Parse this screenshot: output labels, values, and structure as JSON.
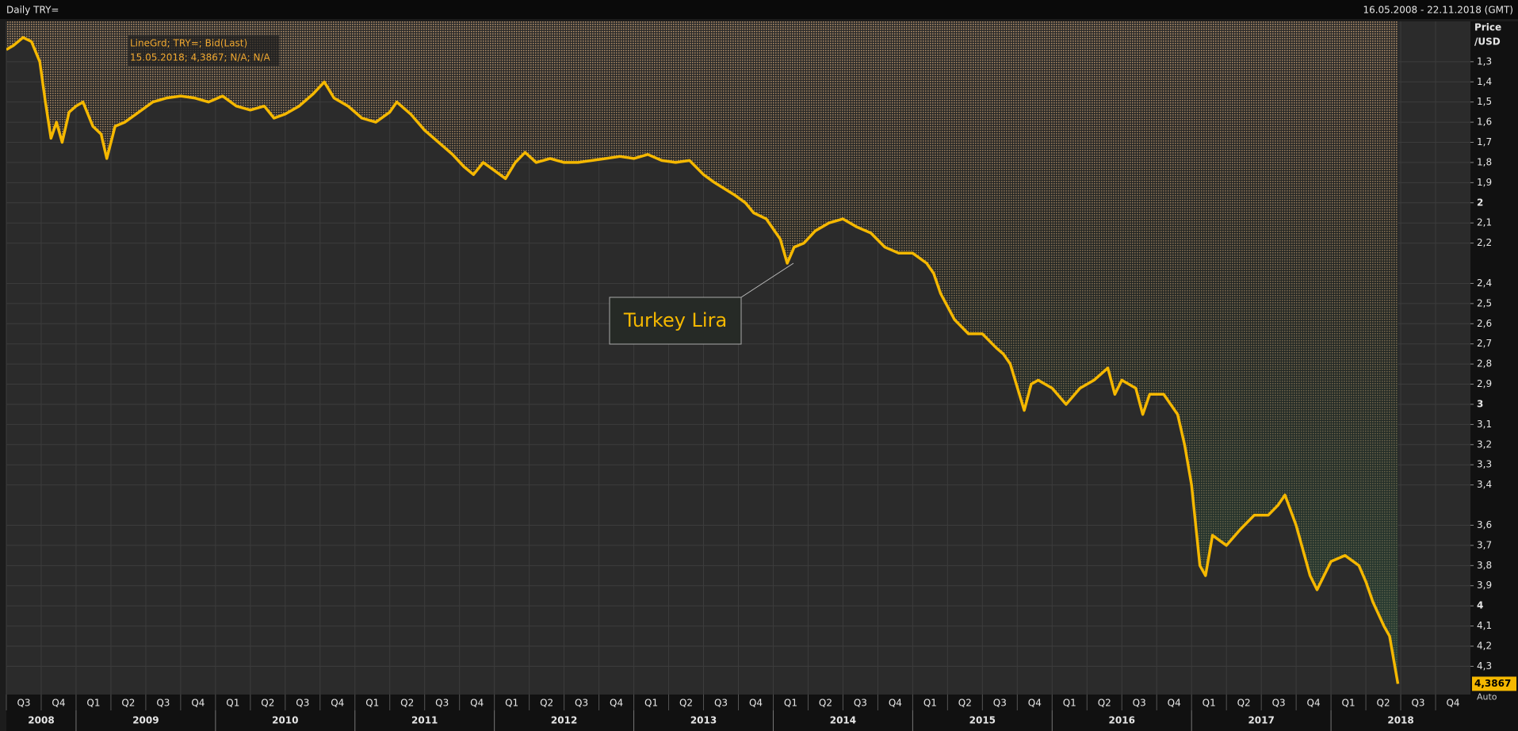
{
  "chart_data": {
    "type": "line",
    "header_title": "Daily TRY=",
    "date_range": "16.05.2008 - 22.11.2018 (GMT)",
    "legend_lines": [
      "LineGrd; TRY=; Bid(Last)",
      "15.05.2018; 4,3867; N/A; N/A"
    ],
    "ylabel": [
      "Price",
      "/USD"
    ],
    "scale_mode": "Auto",
    "annotation": "Turkey Lira",
    "inverted": true,
    "grid": true,
    "ylim": [
      1.1,
      4.44
    ],
    "yticks": [
      {
        "value": 1.3,
        "label": "1,3"
      },
      {
        "value": 1.4,
        "label": "1,4"
      },
      {
        "value": 1.5,
        "label": "1,5"
      },
      {
        "value": 1.6,
        "label": "1,6"
      },
      {
        "value": 1.7,
        "label": "1,7"
      },
      {
        "value": 1.8,
        "label": "1,8"
      },
      {
        "value": 1.9,
        "label": "1,9"
      },
      2,
      {
        "value": 2.1,
        "label": "2,1"
      },
      {
        "value": 2.2,
        "label": "2,2"
      },
      {
        "value": 2.4,
        "label": "2,4"
      },
      {
        "value": 2.5,
        "label": "2,5"
      },
      {
        "value": 2.6,
        "label": "2,6"
      },
      {
        "value": 2.7,
        "label": "2,7"
      },
      {
        "value": 2.8,
        "label": "2,8"
      },
      {
        "value": 2.9,
        "label": "2,9"
      },
      3,
      {
        "value": 3.1,
        "label": "3,1"
      },
      {
        "value": 3.2,
        "label": "3,2"
      },
      {
        "value": 3.3,
        "label": "3,3"
      },
      {
        "value": 3.4,
        "label": "3,4"
      },
      {
        "value": 3.6,
        "label": "3,6"
      },
      {
        "value": 3.7,
        "label": "3,7"
      },
      {
        "value": 3.8,
        "label": "3,8"
      },
      {
        "value": 3.9,
        "label": "3,9"
      },
      4,
      {
        "value": 4.1,
        "label": "4,1"
      },
      {
        "value": 4.2,
        "label": "4,2"
      },
      {
        "value": 4.3,
        "label": "4,3"
      }
    ],
    "xlim": [
      2008.5,
      2019.0
    ],
    "xticks": [
      {
        "value": 2008.5,
        "label": "Q3"
      },
      {
        "value": 2008.75,
        "label": "Q4"
      },
      {
        "value": 2009,
        "label": "Q1"
      },
      {
        "value": 2009.25,
        "label": "Q2"
      },
      {
        "value": 2009.5,
        "label": "Q3"
      },
      {
        "value": 2009.75,
        "label": "Q4"
      },
      {
        "value": 2010,
        "label": "Q1"
      },
      {
        "value": 2010.25,
        "label": "Q2"
      },
      {
        "value": 2010.5,
        "label": "Q3"
      },
      {
        "value": 2010.75,
        "label": "Q4"
      },
      {
        "value": 2011,
        "label": "Q1"
      },
      {
        "value": 2011.25,
        "label": "Q2"
      },
      {
        "value": 2011.5,
        "label": "Q3"
      },
      {
        "value": 2011.75,
        "label": "Q4"
      },
      {
        "value": 2012,
        "label": "Q1"
      },
      {
        "value": 2012.25,
        "label": "Q2"
      },
      {
        "value": 2012.5,
        "label": "Q3"
      },
      {
        "value": 2012.75,
        "label": "Q4"
      },
      {
        "value": 2013,
        "label": "Q1"
      },
      {
        "value": 2013.25,
        "label": "Q2"
      },
      {
        "value": 2013.5,
        "label": "Q3"
      },
      {
        "value": 2013.75,
        "label": "Q4"
      },
      {
        "value": 2014,
        "label": "Q1"
      },
      {
        "value": 2014.25,
        "label": "Q2"
      },
      {
        "value": 2014.5,
        "label": "Q3"
      },
      {
        "value": 2014.75,
        "label": "Q4"
      },
      {
        "value": 2015,
        "label": "Q1"
      },
      {
        "value": 2015.25,
        "label": "Q2"
      },
      {
        "value": 2015.5,
        "label": "Q3"
      },
      {
        "value": 2015.75,
        "label": "Q4"
      },
      {
        "value": 2016,
        "label": "Q1"
      },
      {
        "value": 2016.25,
        "label": "Q2"
      },
      {
        "value": 2016.5,
        "label": "Q3"
      },
      {
        "value": 2016.75,
        "label": "Q4"
      },
      {
        "value": 2017,
        "label": "Q1"
      },
      {
        "value": 2017.25,
        "label": "Q2"
      },
      {
        "value": 2017.5,
        "label": "Q3"
      },
      {
        "value": 2017.75,
        "label": "Q4"
      },
      {
        "value": 2018,
        "label": "Q1"
      },
      {
        "value": 2018.25,
        "label": "Q2"
      },
      {
        "value": 2018.5,
        "label": "Q3"
      },
      {
        "value": 2018.75,
        "label": "Q4"
      }
    ],
    "year_ticks": [
      {
        "value": 2008,
        "label": "2008"
      },
      {
        "value": 2009,
        "label": "2009"
      },
      {
        "value": 2010,
        "label": "2010"
      },
      {
        "value": 2011,
        "label": "2011"
      },
      {
        "value": 2012,
        "label": "2012"
      },
      {
        "value": 2013,
        "label": "2013"
      },
      {
        "value": 2014,
        "label": "2014"
      },
      {
        "value": 2015,
        "label": "2015"
      },
      {
        "value": 2016,
        "label": "2016"
      },
      {
        "value": 2017,
        "label": "2017"
      },
      {
        "value": 2018,
        "label": "2018"
      }
    ],
    "last_value_label": "4,3867",
    "series": [
      {
        "name": "TRY=",
        "color": "#f5b800",
        "x": [
          2008.5,
          2008.55,
          2008.62,
          2008.68,
          2008.74,
          2008.78,
          2008.82,
          2008.86,
          2008.9,
          2008.95,
          2009.0,
          2009.05,
          2009.12,
          2009.18,
          2009.22,
          2009.28,
          2009.35,
          2009.45,
          2009.55,
          2009.65,
          2009.75,
          2009.85,
          2009.95,
          2010.05,
          2010.15,
          2010.25,
          2010.35,
          2010.42,
          2010.5,
          2010.6,
          2010.7,
          2010.78,
          2010.85,
          2010.95,
          2011.05,
          2011.15,
          2011.25,
          2011.3,
          2011.4,
          2011.5,
          2011.6,
          2011.7,
          2011.78,
          2011.85,
          2011.92,
          2012.0,
          2012.08,
          2012.15,
          2012.22,
          2012.3,
          2012.4,
          2012.5,
          2012.6,
          2012.7,
          2012.8,
          2012.9,
          2013.0,
          2013.1,
          2013.2,
          2013.3,
          2013.4,
          2013.5,
          2013.58,
          2013.65,
          2013.72,
          2013.8,
          2013.86,
          2013.95,
          2014.05,
          2014.1,
          2014.15,
          2014.22,
          2014.3,
          2014.4,
          2014.5,
          2014.6,
          2014.7,
          2014.8,
          2014.9,
          2015.0,
          2015.1,
          2015.15,
          2015.2,
          2015.3,
          2015.4,
          2015.5,
          2015.6,
          2015.65,
          2015.7,
          2015.8,
          2015.85,
          2015.9,
          2016.0,
          2016.1,
          2016.2,
          2016.3,
          2016.4,
          2016.45,
          2016.5,
          2016.6,
          2016.65,
          2016.7,
          2016.8,
          2016.9,
          2016.95,
          2017.0,
          2017.06,
          2017.1,
          2017.15,
          2017.25,
          2017.35,
          2017.45,
          2017.55,
          2017.62,
          2017.67,
          2017.75,
          2017.85,
          2017.9,
          2018.0,
          2018.1,
          2018.2,
          2018.25,
          2018.3,
          2018.38,
          2018.42,
          2018.48
        ],
        "values": [
          1.24,
          1.22,
          1.18,
          1.2,
          1.3,
          1.5,
          1.68,
          1.6,
          1.7,
          1.55,
          1.52,
          1.5,
          1.62,
          1.66,
          1.78,
          1.62,
          1.6,
          1.55,
          1.5,
          1.48,
          1.47,
          1.48,
          1.5,
          1.47,
          1.52,
          1.54,
          1.52,
          1.58,
          1.56,
          1.52,
          1.46,
          1.4,
          1.48,
          1.52,
          1.58,
          1.6,
          1.55,
          1.5,
          1.56,
          1.64,
          1.7,
          1.76,
          1.82,
          1.86,
          1.8,
          1.84,
          1.88,
          1.8,
          1.75,
          1.8,
          1.78,
          1.8,
          1.8,
          1.79,
          1.78,
          1.77,
          1.78,
          1.76,
          1.79,
          1.8,
          1.79,
          1.86,
          1.9,
          1.93,
          1.96,
          2.0,
          2.05,
          2.08,
          2.18,
          2.3,
          2.22,
          2.2,
          2.14,
          2.1,
          2.08,
          2.12,
          2.15,
          2.22,
          2.25,
          2.25,
          2.3,
          2.35,
          2.45,
          2.58,
          2.65,
          2.65,
          2.72,
          2.75,
          2.8,
          3.03,
          2.9,
          2.88,
          2.92,
          3.0,
          2.92,
          2.88,
          2.82,
          2.95,
          2.88,
          2.92,
          3.05,
          2.95,
          2.95,
          3.05,
          3.2,
          3.4,
          3.8,
          3.85,
          3.65,
          3.7,
          3.62,
          3.55,
          3.55,
          3.5,
          3.45,
          3.6,
          3.85,
          3.92,
          3.78,
          3.75,
          3.8,
          3.88,
          3.98,
          4.1,
          4.15,
          4.3867
        ]
      }
    ]
  }
}
